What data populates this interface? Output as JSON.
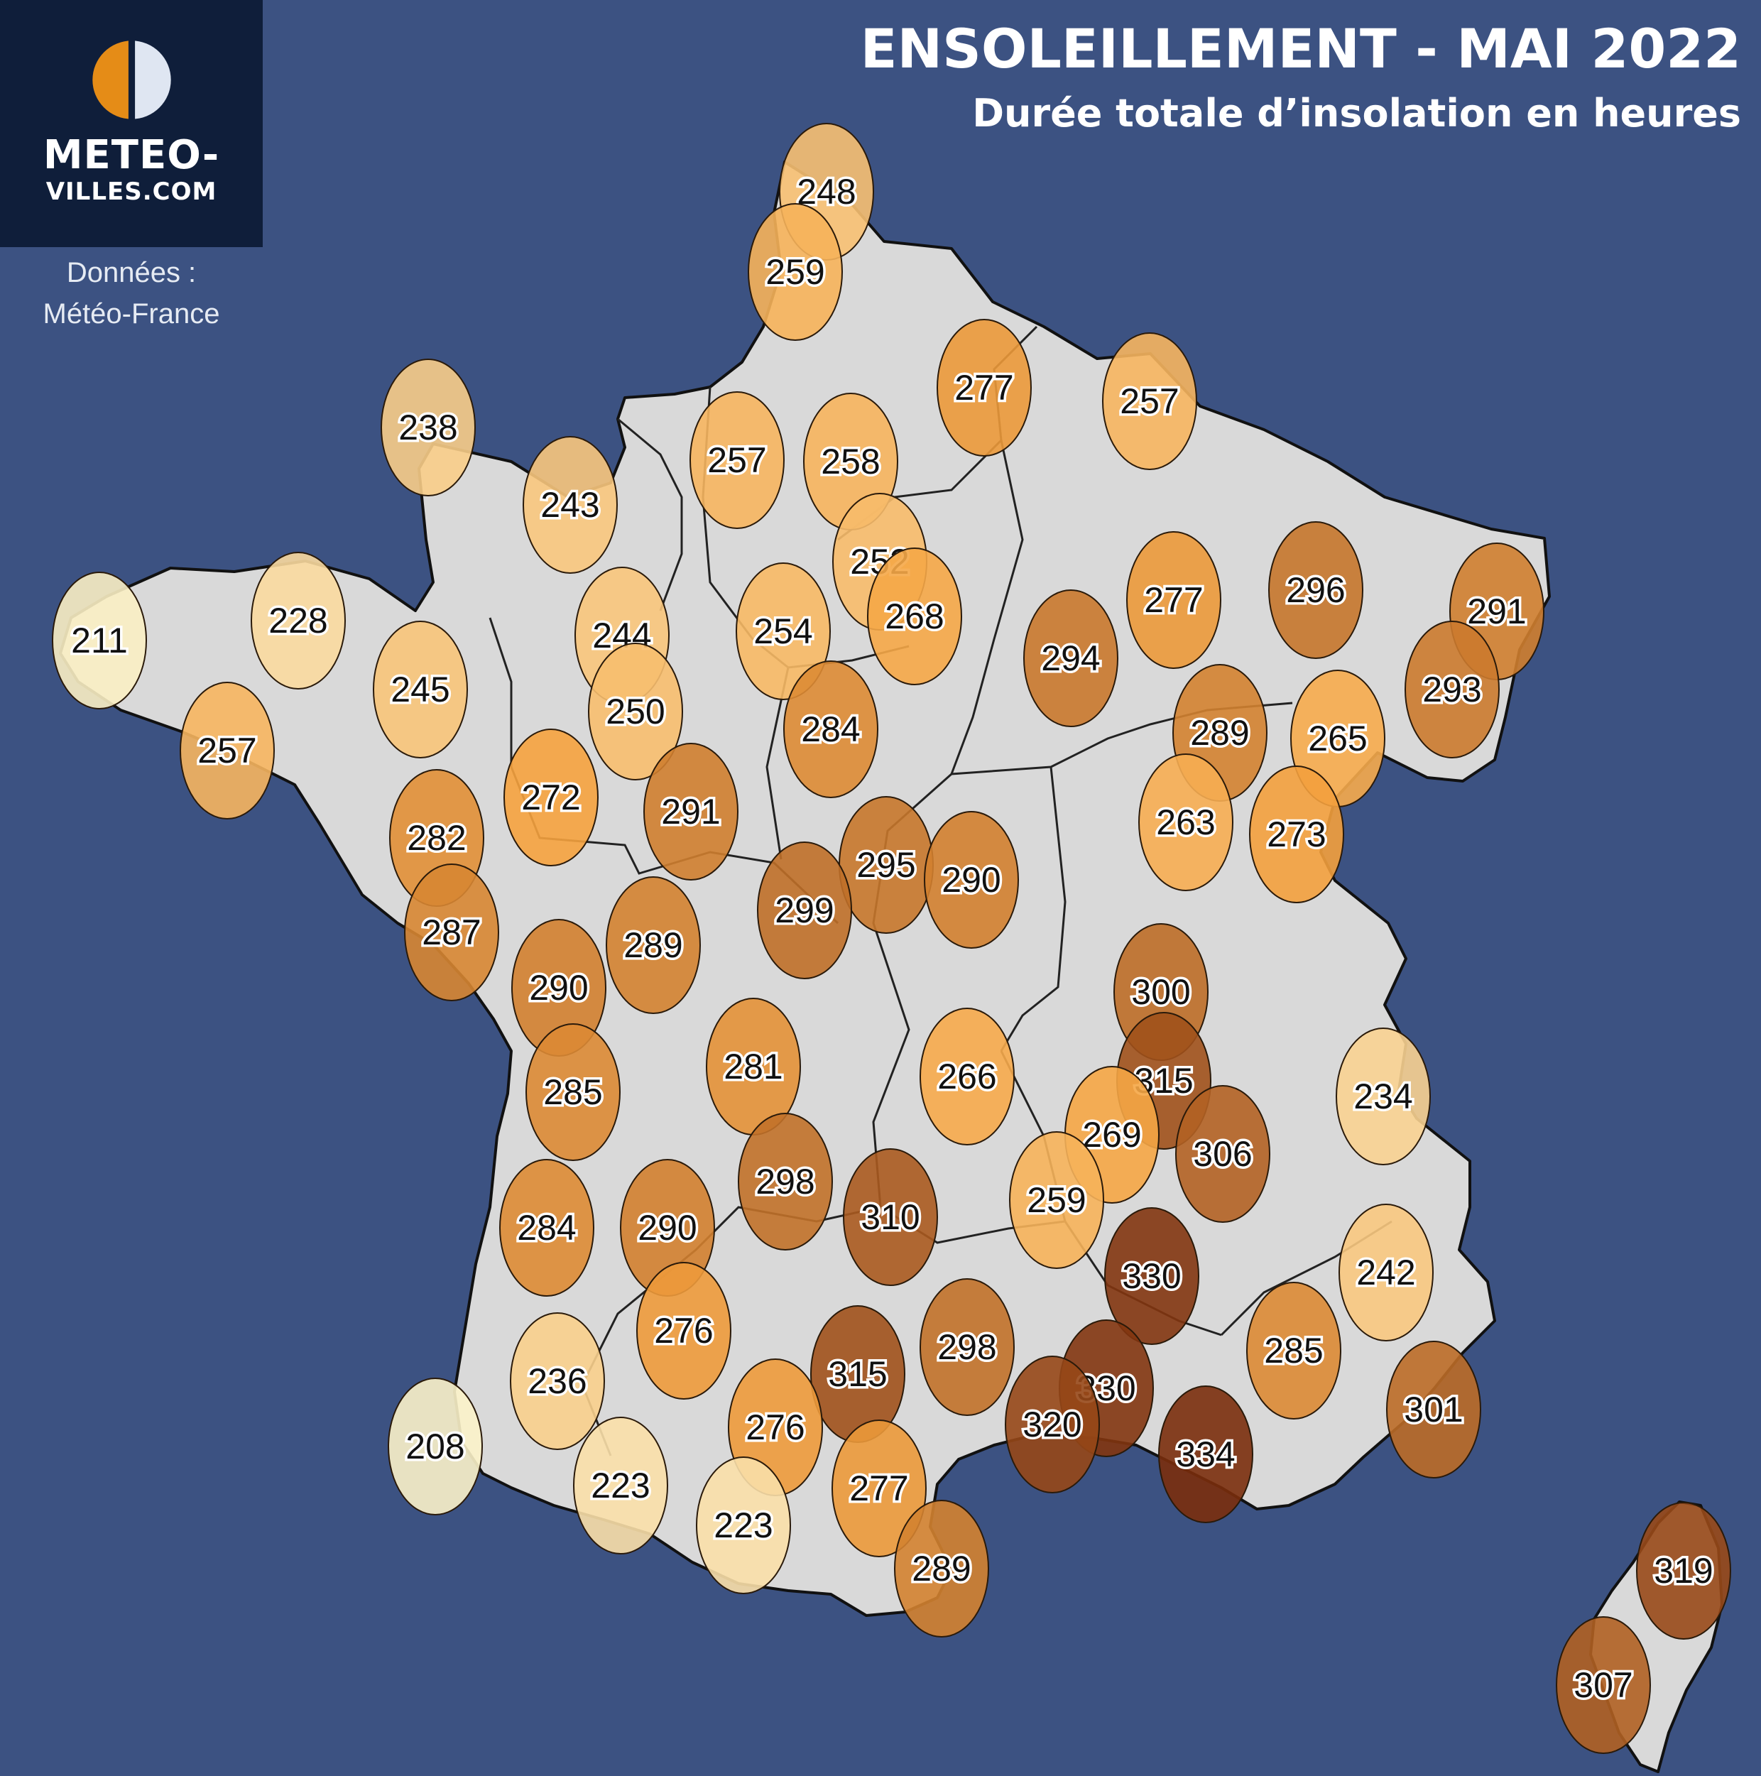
{
  "header": {
    "title": "ENSOLEILLEMENT - MAI 2022",
    "subtitle": "Durée totale d’insolation en heures"
  },
  "logo": {
    "line1": "METEO-",
    "line2": "VILLES.COM"
  },
  "credit": {
    "label": "Données :",
    "source": "Météo-France"
  },
  "colors": {
    "ocean": "#3c5282",
    "land": "#d9d9d9",
    "logo_bg": "#0f1e3a",
    "scale_low": "#fbf6d0",
    "scale_mid": "#f5a23e",
    "scale_high": "#7a2d0c"
  },
  "stations": [
    {
      "value": 248
    },
    {
      "value": 259
    },
    {
      "value": 277
    },
    {
      "value": 257
    },
    {
      "value": 238
    },
    {
      "value": 257
    },
    {
      "value": 258
    },
    {
      "value": 243
    },
    {
      "value": 252
    },
    {
      "value": 211
    },
    {
      "value": 228
    },
    {
      "value": 244
    },
    {
      "value": 254
    },
    {
      "value": 268
    },
    {
      "value": 277
    },
    {
      "value": 296
    },
    {
      "value": 291
    },
    {
      "value": 294
    },
    {
      "value": 245
    },
    {
      "value": 250
    },
    {
      "value": 284
    },
    {
      "value": 293
    },
    {
      "value": 257
    },
    {
      "value": 289
    },
    {
      "value": 265
    },
    {
      "value": 272
    },
    {
      "value": 291
    },
    {
      "value": 282
    },
    {
      "value": 263
    },
    {
      "value": 273
    },
    {
      "value": 295
    },
    {
      "value": 290
    },
    {
      "value": 299
    },
    {
      "value": 287
    },
    {
      "value": 289
    },
    {
      "value": 290
    },
    {
      "value": 300
    },
    {
      "value": 285
    },
    {
      "value": 281
    },
    {
      "value": 266
    },
    {
      "value": 315
    },
    {
      "value": 234
    },
    {
      "value": 269
    },
    {
      "value": 306
    },
    {
      "value": 298
    },
    {
      "value": 310
    },
    {
      "value": 259
    },
    {
      "value": 284
    },
    {
      "value": 290
    },
    {
      "value": 330
    },
    {
      "value": 242
    },
    {
      "value": 276
    },
    {
      "value": 315
    },
    {
      "value": 298
    },
    {
      "value": 285
    },
    {
      "value": 236
    },
    {
      "value": 330
    },
    {
      "value": 320
    },
    {
      "value": 276
    },
    {
      "value": 301
    },
    {
      "value": 334
    },
    {
      "value": 208
    },
    {
      "value": 223
    },
    {
      "value": 277
    },
    {
      "value": 223
    },
    {
      "value": 289
    },
    {
      "value": 319
    },
    {
      "value": 307
    }
  ]
}
